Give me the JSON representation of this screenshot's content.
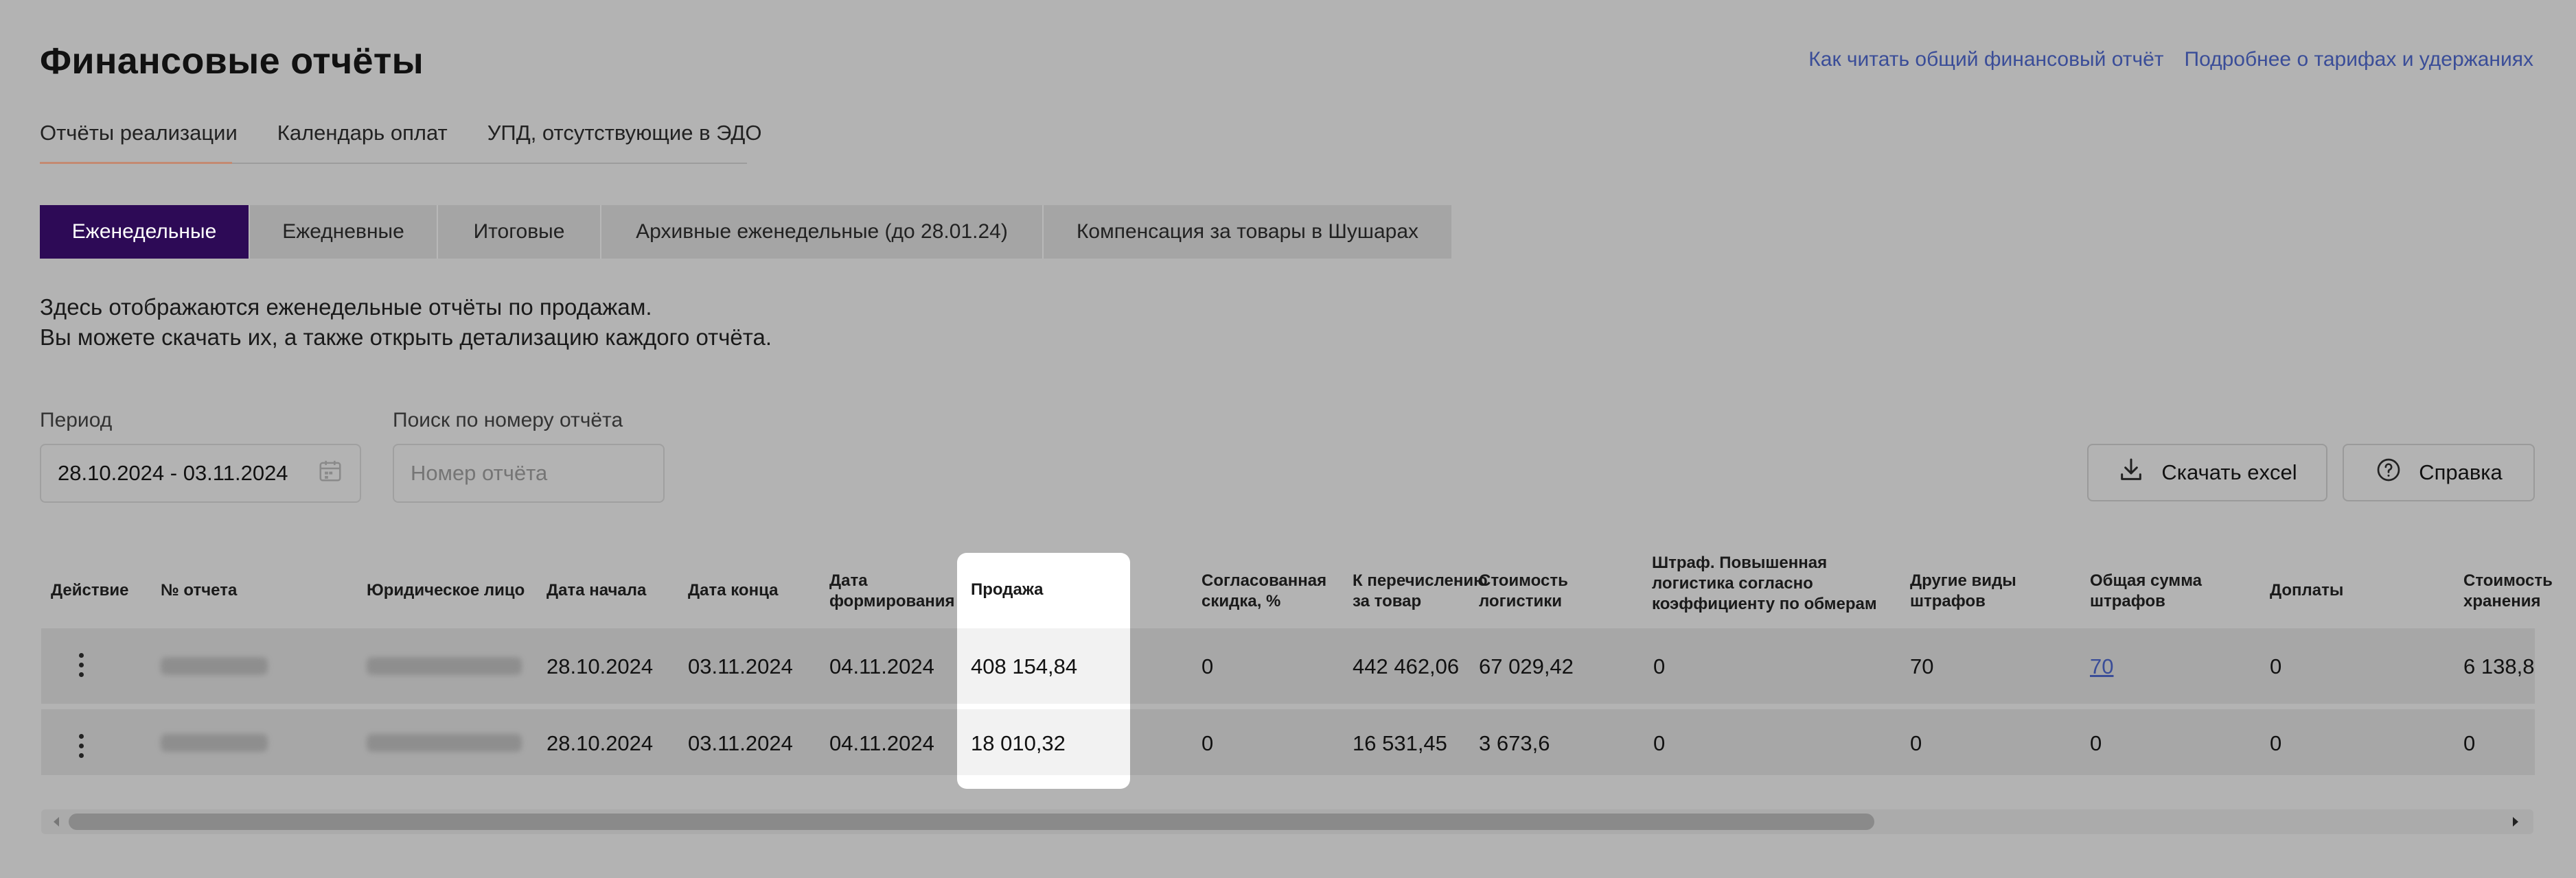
{
  "header": {
    "title": "Финансовые отчёты",
    "links": [
      "Как читать общий финансовый отчёт",
      "Подробнее о тарифах и удержаниях"
    ]
  },
  "nav_tabs": [
    "Отчёты реализации",
    "Календарь оплат",
    "УПД, отсутствующие в ЭДО"
  ],
  "segment_tabs": [
    "Еженедельные",
    "Ежедневные",
    "Итоговые",
    "Архивные еженедельные (до 28.01.24)",
    "Компенсация за товары в Шушарах"
  ],
  "description": {
    "line1": "Здесь отображаются еженедельные отчёты по продажам.",
    "line2": "Вы можете скачать их, а также открыть детализацию каждого отчёта."
  },
  "filters": {
    "period_label": "Период",
    "period_value": "28.10.2024 - 03.11.2024",
    "search_label": "Поиск по номеру отчёта",
    "search_placeholder": "Номер отчёта"
  },
  "actions": {
    "download_label": "Скачать excel",
    "help_label": "Справка"
  },
  "table": {
    "headers": {
      "action": "Действие",
      "number": "№ отчета",
      "entity": "Юридическое лицо",
      "start": "Дата начала",
      "end": "Дата конца",
      "formed_1": "Дата",
      "formed_2": "формирования",
      "sale": "Продажа",
      "discount_1": "Согласованная",
      "discount_2": "скидка, %",
      "payout_1": "К перечислению",
      "payout_2": "за товар",
      "logistics_1": "Стоимость",
      "logistics_2": "логистики",
      "fine_log_1": "Штраф. Повышенная",
      "fine_log_2": "логистика согласно",
      "fine_log_3": "коэффициенту по обмерам",
      "other_fines_1": "Другие виды",
      "other_fines_2": "штрафов",
      "total_fines_1": "Общая сумма",
      "total_fines_2": "штрафов",
      "extra": "Доплаты",
      "storage_1": "Стоимость",
      "storage_2": "хранения"
    },
    "rows": [
      {
        "start": "28.10.2024",
        "end": "03.11.2024",
        "formed": "04.11.2024",
        "sale": "408 154,84",
        "discount": "0",
        "payout": "442 462,06",
        "logistics": "67 029,42",
        "fine_log": "0",
        "other_fines": "70",
        "total_fines": "70",
        "extra": "0",
        "storage": "6 138,8"
      },
      {
        "start": "28.10.2024",
        "end": "03.11.2024",
        "formed": "04.11.2024",
        "sale": "18 010,32",
        "discount": "0",
        "payout": "16 531,45",
        "logistics": "3 673,6",
        "fine_log": "0",
        "other_fines": "0",
        "total_fines": "0",
        "extra": "0",
        "storage": "0"
      }
    ]
  },
  "colors": {
    "background": "#b3b3b3",
    "accent_tab": "#2d0a56",
    "link": "#3a4d98",
    "highlight": "#ffffff"
  },
  "icons": [
    "calendar-icon",
    "download-icon",
    "help-circle-icon",
    "kebab-icon",
    "scroll-left-icon",
    "scroll-right-icon"
  ]
}
